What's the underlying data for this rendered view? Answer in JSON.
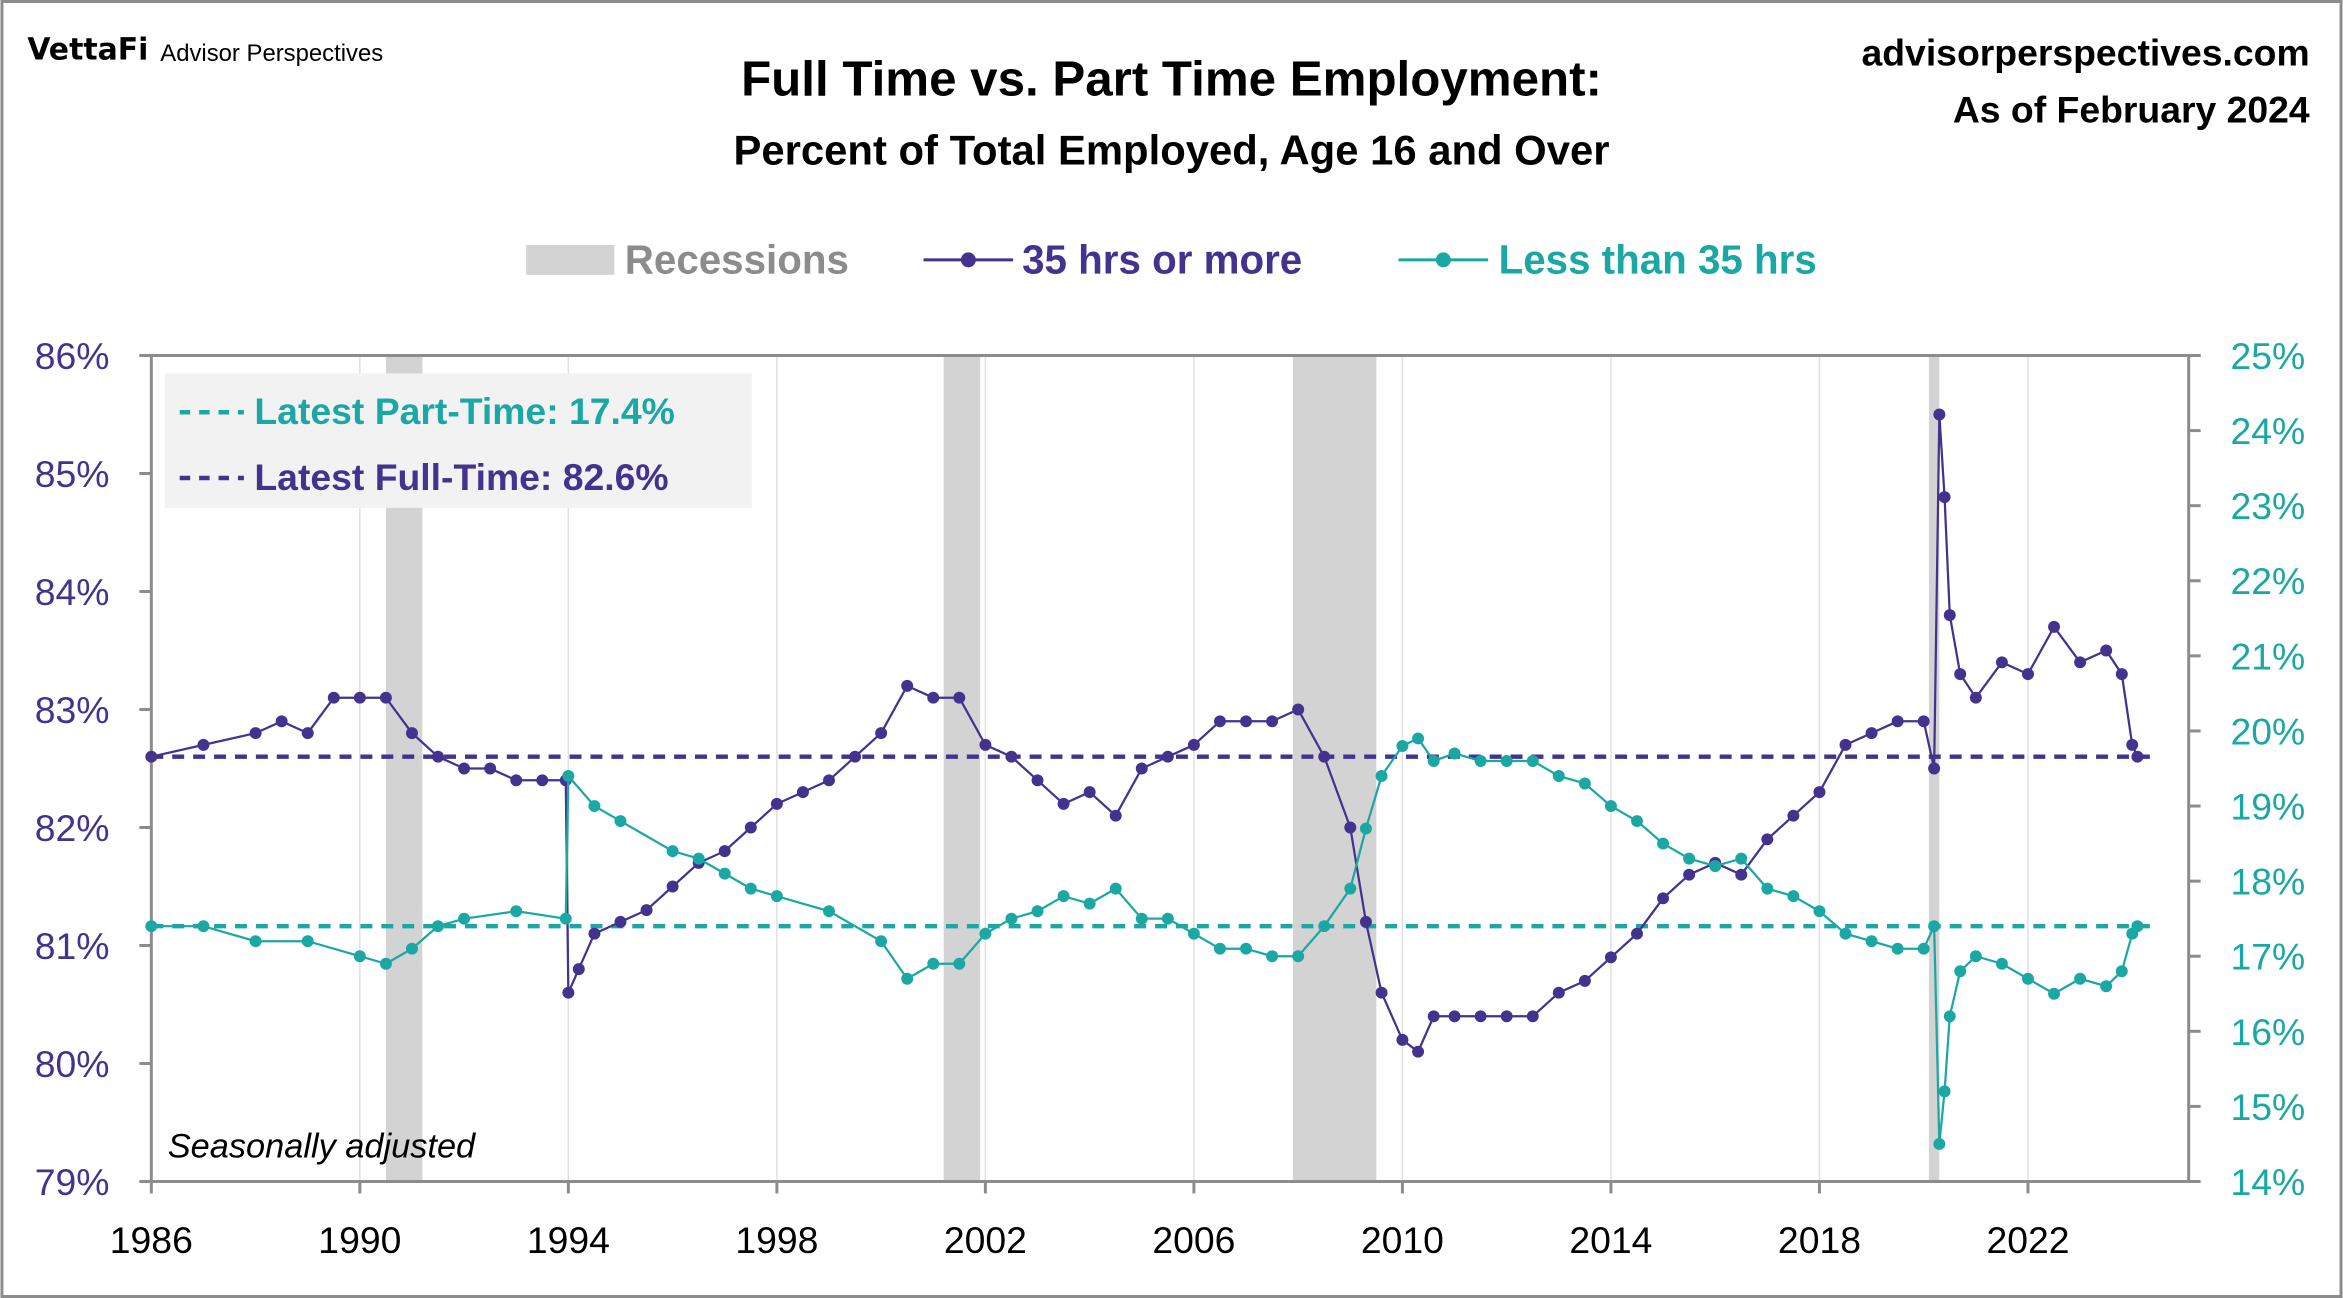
{
  "header": {
    "logo": "VettaFi",
    "brand": "Advisor Perspectives",
    "site": "advisorperspectives.com",
    "as_of": "As of February 2024"
  },
  "chart_data": {
    "type": "line",
    "title": "Full Time vs. Part Time Employment:",
    "subtitle": "Percent of Total Employed, Age 16 and Over",
    "note": "Seasonally adjusted",
    "legend": {
      "placement": "top-center",
      "recessions": "Recessions"
    },
    "annotations": {
      "part_time": "Latest Part-Time: 17.4%",
      "full_time": "Latest Full-Time: 82.6%"
    },
    "xlim": [
      1986,
      2024.6
    ],
    "x_ticks": [
      "1986",
      "1990",
      "1994",
      "1998",
      "2002",
      "2006",
      "2010",
      "2014",
      "2018",
      "2022"
    ],
    "y_left": {
      "lim": [
        79,
        86
      ],
      "ticks": [
        "79%",
        "80%",
        "81%",
        "82%",
        "83%",
        "84%",
        "85%",
        "86%"
      ]
    },
    "y_right": {
      "lim": [
        14,
        25
      ],
      "ticks": [
        "14%",
        "15%",
        "16%",
        "17%",
        "18%",
        "19%",
        "20%",
        "21%",
        "22%",
        "23%",
        "24%",
        "25%"
      ]
    },
    "grid": "vertical",
    "recessions": [
      [
        1990.5,
        1991.2
      ],
      [
        2001.2,
        2001.9
      ],
      [
        2007.9,
        2009.5
      ],
      [
        2020.1,
        2020.3
      ]
    ],
    "colors": {
      "full_time": "#44328f",
      "part_time": "#1ba8a5",
      "recession": "#d3d3d3",
      "axis": "#8c8c8c"
    },
    "reference_lines": {
      "full_time": 82.6,
      "part_time": 17.4
    },
    "series": [
      {
        "name": "35 hrs or more",
        "axis": "left",
        "x": [
          1986,
          1987,
          1988,
          1988.5,
          1989,
          1989.5,
          1990,
          1990.5,
          1991,
          1991.5,
          1992,
          1992.5,
          1993,
          1993.5,
          1993.95,
          1994,
          1994.2,
          1994.5,
          1995,
          1995.5,
          1996,
          1996.5,
          1997,
          1997.5,
          1998,
          1998.5,
          1999,
          1999.5,
          2000,
          2000.5,
          2001,
          2001.5,
          2002,
          2002.5,
          2003,
          2003.5,
          2004,
          2004.5,
          2005,
          2005.5,
          2006,
          2006.5,
          2007,
          2007.5,
          2008,
          2008.5,
          2009,
          2009.3,
          2009.6,
          2010,
          2010.3,
          2010.6,
          2011,
          2011.5,
          2012,
          2012.5,
          2013,
          2013.5,
          2014,
          2014.5,
          2015,
          2015.5,
          2016,
          2016.5,
          2017,
          2017.5,
          2018,
          2018.5,
          2019,
          2019.5,
          2020,
          2020.2,
          2020.3,
          2020.4,
          2020.5,
          2020.7,
          2021,
          2021.5,
          2022,
          2022.5,
          2023,
          2023.5,
          2023.8,
          2024,
          2024.1
        ],
        "values": [
          82.6,
          82.7,
          82.8,
          82.9,
          82.8,
          83.1,
          83.1,
          83.1,
          82.8,
          82.6,
          82.5,
          82.5,
          82.4,
          82.4,
          82.4,
          80.6,
          80.8,
          81.1,
          81.2,
          81.3,
          81.5,
          81.7,
          81.8,
          82.0,
          82.2,
          82.3,
          82.4,
          82.6,
          82.8,
          83.2,
          83.1,
          83.1,
          82.7,
          82.6,
          82.4,
          82.2,
          82.3,
          82.1,
          82.5,
          82.6,
          82.7,
          82.9,
          82.9,
          82.9,
          83.0,
          82.6,
          82.0,
          81.2,
          80.6,
          80.2,
          80.1,
          80.4,
          80.4,
          80.4,
          80.4,
          80.4,
          80.6,
          80.7,
          80.9,
          81.1,
          81.4,
          81.6,
          81.7,
          81.6,
          81.9,
          82.1,
          82.3,
          82.7,
          82.8,
          82.9,
          82.9,
          82.5,
          85.5,
          84.8,
          83.8,
          83.3,
          83.1,
          83.4,
          83.3,
          83.7,
          83.4,
          83.5,
          83.3,
          82.7,
          82.6
        ]
      },
      {
        "name": "Less than 35 hrs",
        "axis": "right",
        "x": [
          1986,
          1987,
          1988,
          1989,
          1990,
          1990.5,
          1991,
          1991.5,
          1992,
          1993,
          1993.95,
          1994,
          1994.5,
          1995,
          1996,
          1996.5,
          1997,
          1997.5,
          1998,
          1999,
          2000,
          2000.5,
          2001,
          2001.5,
          2002,
          2002.5,
          2003,
          2003.5,
          2004,
          2004.5,
          2005,
          2005.5,
          2006,
          2006.5,
          2007,
          2007.5,
          2008,
          2008.5,
          2009,
          2009.3,
          2009.6,
          2010,
          2010.3,
          2010.6,
          2011,
          2011.5,
          2012,
          2012.5,
          2013,
          2013.5,
          2014,
          2014.5,
          2015,
          2015.5,
          2016,
          2016.5,
          2017,
          2017.5,
          2018,
          2018.5,
          2019,
          2019.5,
          2020,
          2020.2,
          2020.3,
          2020.4,
          2020.5,
          2020.7,
          2021,
          2021.5,
          2022,
          2022.5,
          2023,
          2023.5,
          2023.8,
          2024,
          2024.1
        ],
        "values": [
          17.4,
          17.4,
          17.2,
          17.2,
          17.0,
          16.9,
          17.1,
          17.4,
          17.5,
          17.6,
          17.5,
          19.4,
          19.0,
          18.8,
          18.4,
          18.3,
          18.1,
          17.9,
          17.8,
          17.6,
          17.2,
          16.7,
          16.9,
          16.9,
          17.3,
          17.5,
          17.6,
          17.8,
          17.7,
          17.9,
          17.5,
          17.5,
          17.3,
          17.1,
          17.1,
          17.0,
          17.0,
          17.4,
          17.9,
          18.7,
          19.4,
          19.8,
          19.9,
          19.6,
          19.7,
          19.6,
          19.6,
          19.6,
          19.4,
          19.3,
          19.0,
          18.8,
          18.5,
          18.3,
          18.2,
          18.3,
          17.9,
          17.8,
          17.6,
          17.3,
          17.2,
          17.1,
          17.1,
          17.4,
          14.5,
          15.2,
          16.2,
          16.8,
          17.0,
          16.9,
          16.7,
          16.5,
          16.7,
          16.6,
          16.8,
          17.3,
          17.4
        ]
      }
    ]
  }
}
